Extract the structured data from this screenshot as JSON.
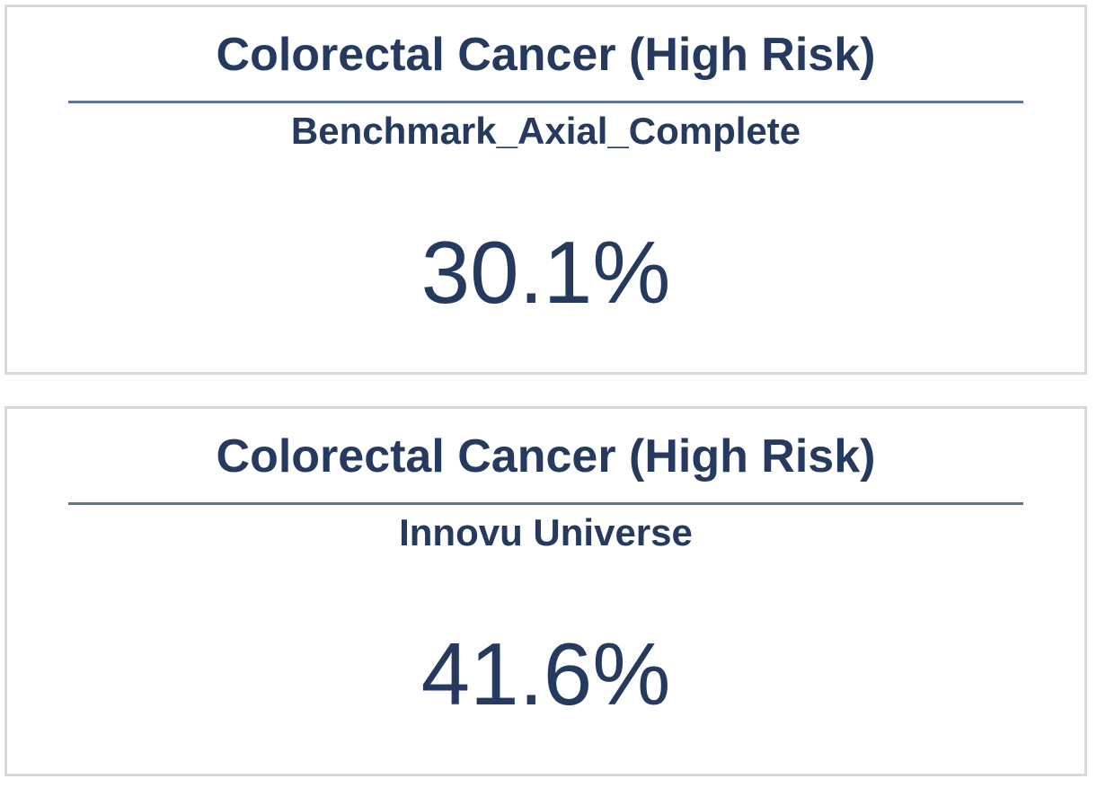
{
  "cards": [
    {
      "title": "Colorectal Cancer (High Risk)",
      "subtitle": "Benchmark_Axial_Complete",
      "value": "30.1%"
    },
    {
      "title": "Colorectal Cancer (High Risk)",
      "subtitle": "Innovu Universe",
      "value": "41.6%"
    }
  ],
  "colors": {
    "text": "#253a5e",
    "rule": "#5f7591",
    "border": "#d9d9d9"
  }
}
